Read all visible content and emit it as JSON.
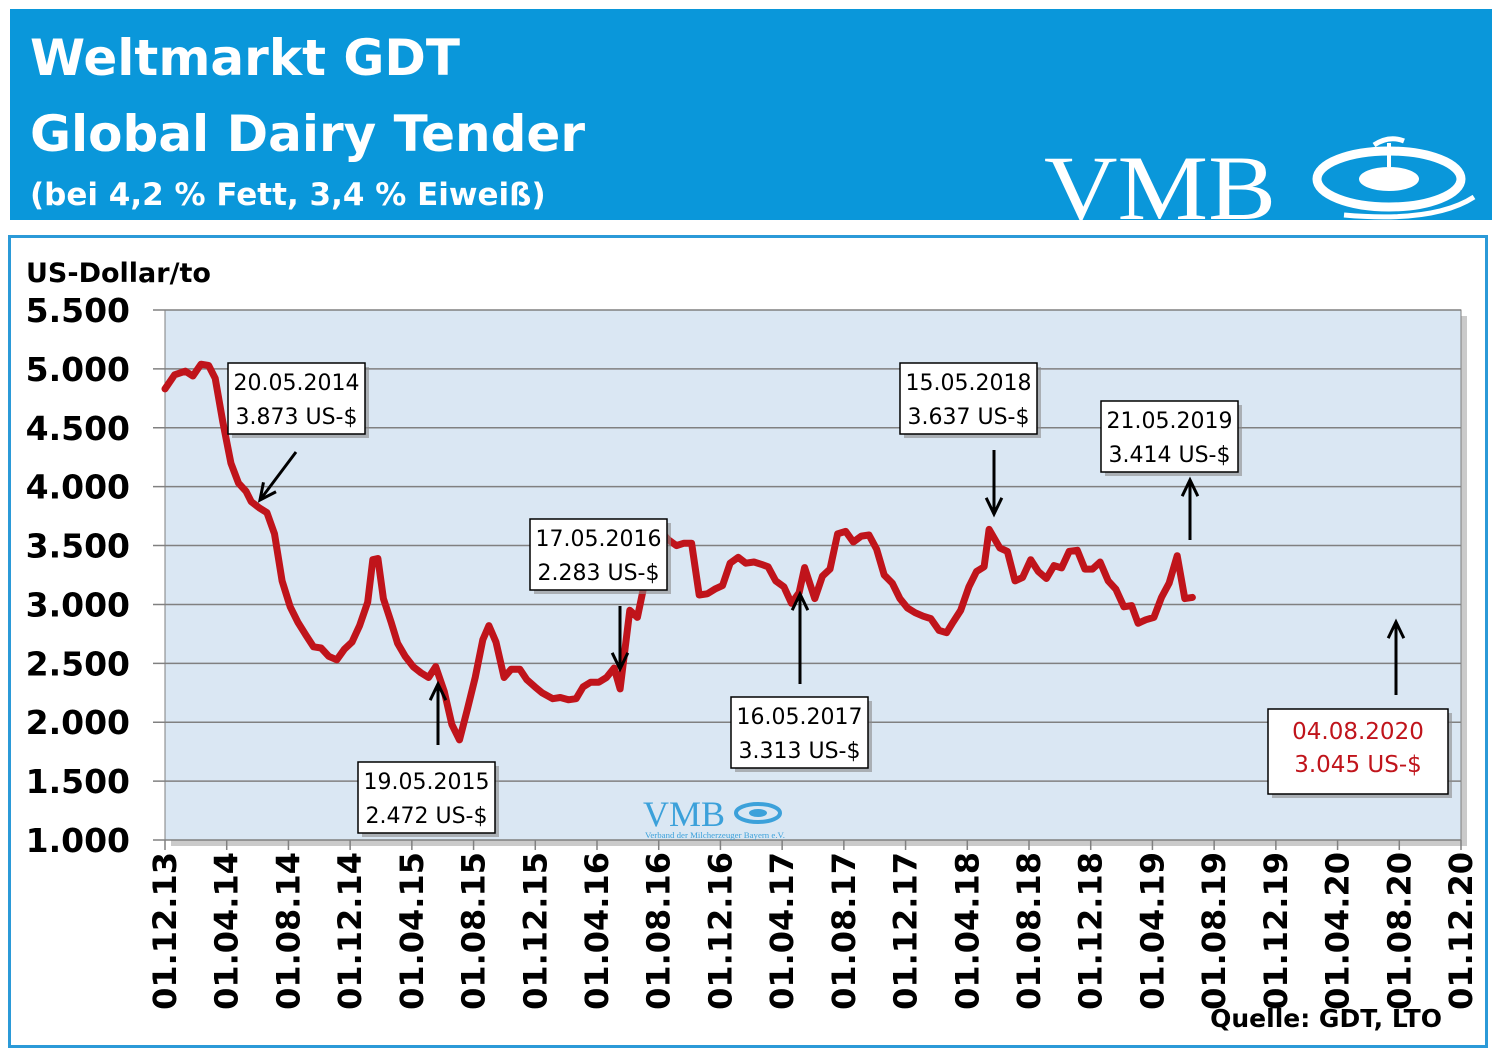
{
  "header": {
    "line1": "Weltmarkt GDT",
    "line2": "Global Dairy Tender",
    "line3": "(bei 4,2 % Fett, 3,4 % Eiweiß)",
    "logo_text": "VMB",
    "bg_color": "#0a97da"
  },
  "watermark": {
    "text": "VMB",
    "subtext": "Verband der Milcherzeuger Bayern e.V."
  },
  "source": "Quelle: GDT, LTO",
  "chart_data": {
    "type": "line",
    "ylabel": "US-Dollar/to",
    "ylim": [
      1000,
      5500
    ],
    "yticks": [
      "5.500",
      "5.000",
      "4.500",
      "4.000",
      "3.500",
      "3.000",
      "2.500",
      "2.000",
      "1.500",
      "1.000"
    ],
    "x_tick_labels": [
      "01.12.13",
      "01.04.14",
      "01.08.14",
      "01.12.14",
      "01.04.15",
      "01.08.15",
      "01.12.15",
      "01.04.16",
      "01.08.16",
      "01.12.16",
      "01.04.17",
      "01.08.17",
      "01.12.17",
      "01.04.18",
      "01.08.18",
      "01.12.18",
      "01.04.19",
      "01.08.19",
      "01.12.19",
      "01.04.20",
      "01.08.20",
      "01.12.20"
    ],
    "grid": true,
    "line_color": "#c0141b",
    "plot_bg": "#dae7f3",
    "series": [
      {
        "values": [
          [
            "2013-12-01",
            4830
          ],
          [
            "2013-12-20",
            4950
          ],
          [
            "2014-01-10",
            4980
          ],
          [
            "2014-01-25",
            4940
          ],
          [
            "2014-02-10",
            5040
          ],
          [
            "2014-02-25",
            5030
          ],
          [
            "2014-03-10",
            4920
          ],
          [
            "2014-03-25",
            4550
          ],
          [
            "2014-04-10",
            4200
          ],
          [
            "2014-04-25",
            4030
          ],
          [
            "2014-05-10",
            3960
          ],
          [
            "2014-05-20",
            3873
          ],
          [
            "2014-06-05",
            3820
          ],
          [
            "2014-06-20",
            3780
          ],
          [
            "2014-07-05",
            3600
          ],
          [
            "2014-07-20",
            3200
          ],
          [
            "2014-08-05",
            2980
          ],
          [
            "2014-08-20",
            2850
          ],
          [
            "2014-09-05",
            2740
          ],
          [
            "2014-09-20",
            2640
          ],
          [
            "2014-10-05",
            2630
          ],
          [
            "2014-10-20",
            2560
          ],
          [
            "2014-11-05",
            2530
          ],
          [
            "2014-11-20",
            2620
          ],
          [
            "2014-12-05",
            2680
          ],
          [
            "2014-12-20",
            2820
          ],
          [
            "2015-01-05",
            3020
          ],
          [
            "2015-01-15",
            3380
          ],
          [
            "2015-01-25",
            3390
          ],
          [
            "2015-02-05",
            3050
          ],
          [
            "2015-02-20",
            2850
          ],
          [
            "2015-03-05",
            2670
          ],
          [
            "2015-03-20",
            2560
          ],
          [
            "2015-04-05",
            2470
          ],
          [
            "2015-04-20",
            2420
          ],
          [
            "2015-05-05",
            2380
          ],
          [
            "2015-05-19",
            2472
          ],
          [
            "2015-06-05",
            2260
          ],
          [
            "2015-06-20",
            1980
          ],
          [
            "2015-07-05",
            1850
          ],
          [
            "2015-07-20",
            2100
          ],
          [
            "2015-08-05",
            2380
          ],
          [
            "2015-08-20",
            2700
          ],
          [
            "2015-09-01",
            2820
          ],
          [
            "2015-09-15",
            2680
          ],
          [
            "2015-10-01",
            2380
          ],
          [
            "2015-10-15",
            2450
          ],
          [
            "2015-11-01",
            2450
          ],
          [
            "2015-11-15",
            2360
          ],
          [
            "2015-12-01",
            2300
          ],
          [
            "2015-12-15",
            2250
          ],
          [
            "2016-01-05",
            2200
          ],
          [
            "2016-01-20",
            2210
          ],
          [
            "2016-02-05",
            2190
          ],
          [
            "2016-02-20",
            2200
          ],
          [
            "2016-03-05",
            2300
          ],
          [
            "2016-03-20",
            2340
          ],
          [
            "2016-04-05",
            2340
          ],
          [
            "2016-04-20",
            2380
          ],
          [
            "2016-05-05",
            2460
          ],
          [
            "2016-05-17",
            2283
          ],
          [
            "2016-06-05",
            2950
          ],
          [
            "2016-06-20",
            2890
          ],
          [
            "2016-07-05",
            3200
          ],
          [
            "2016-07-20",
            3500
          ],
          [
            "2016-08-05",
            3620
          ],
          [
            "2016-08-20",
            3550
          ],
          [
            "2016-09-05",
            3500
          ],
          [
            "2016-09-20",
            3520
          ],
          [
            "2016-10-05",
            3520
          ],
          [
            "2016-10-20",
            3080
          ],
          [
            "2016-11-05",
            3090
          ],
          [
            "2016-11-20",
            3130
          ],
          [
            "2016-12-05",
            3160
          ],
          [
            "2016-12-20",
            3350
          ],
          [
            "2017-01-05",
            3400
          ],
          [
            "2017-01-20",
            3350
          ],
          [
            "2017-02-05",
            3360
          ],
          [
            "2017-02-20",
            3340
          ],
          [
            "2017-03-05",
            3320
          ],
          [
            "2017-03-20",
            3200
          ],
          [
            "2017-04-05",
            3150
          ],
          [
            "2017-04-20",
            3010
          ],
          [
            "2017-05-05",
            3100
          ],
          [
            "2017-05-16",
            3313
          ],
          [
            "2017-06-05",
            3050
          ],
          [
            "2017-06-20",
            3240
          ],
          [
            "2017-07-05",
            3300
          ],
          [
            "2017-07-20",
            3600
          ],
          [
            "2017-08-05",
            3620
          ],
          [
            "2017-08-20",
            3530
          ],
          [
            "2017-09-05",
            3580
          ],
          [
            "2017-09-20",
            3590
          ],
          [
            "2017-10-05",
            3470
          ],
          [
            "2017-10-20",
            3250
          ],
          [
            "2017-11-05",
            3180
          ],
          [
            "2017-11-20",
            3050
          ],
          [
            "2017-12-05",
            2970
          ],
          [
            "2017-12-20",
            2930
          ],
          [
            "2018-01-05",
            2900
          ],
          [
            "2018-01-20",
            2880
          ],
          [
            "2018-02-05",
            2780
          ],
          [
            "2018-02-20",
            2760
          ],
          [
            "2018-03-05",
            2850
          ],
          [
            "2018-03-20",
            2950
          ],
          [
            "2018-04-05",
            3150
          ],
          [
            "2018-04-20",
            3280
          ],
          [
            "2018-05-05",
            3320
          ],
          [
            "2018-05-15",
            3637
          ],
          [
            "2018-06-05",
            3480
          ],
          [
            "2018-06-20",
            3450
          ],
          [
            "2018-07-05",
            3200
          ],
          [
            "2018-07-20",
            3230
          ],
          [
            "2018-08-05",
            3380
          ],
          [
            "2018-08-20",
            3280
          ],
          [
            "2018-09-05",
            3220
          ],
          [
            "2018-09-20",
            3330
          ],
          [
            "2018-10-05",
            3310
          ],
          [
            "2018-10-20",
            3450
          ],
          [
            "2018-11-05",
            3460
          ],
          [
            "2018-11-20",
            3300
          ],
          [
            "2018-12-05",
            3300
          ],
          [
            "2018-12-20",
            3360
          ],
          [
            "2019-01-05",
            3200
          ],
          [
            "2019-01-20",
            3130
          ],
          [
            "2019-02-05",
            2980
          ],
          [
            "2019-02-20",
            2990
          ],
          [
            "2019-03-05",
            2840
          ],
          [
            "2019-03-20",
            2870
          ],
          [
            "2019-04-05",
            2890
          ],
          [
            "2019-04-20",
            3060
          ],
          [
            "2019-05-05",
            3180
          ],
          [
            "2019-05-21",
            3414
          ],
          [
            "2019-06-05",
            3050
          ],
          [
            "2019-06-20",
            3060
          ]
        ]
      }
    ],
    "annotations": [
      {
        "date": "20.05.2014",
        "value": "3.873 US-$"
      },
      {
        "date": "19.05.2015",
        "value": "2.472 US-$"
      },
      {
        "date": "17.05.2016",
        "value": "2.283 US-$"
      },
      {
        "date": "16.05.2017",
        "value": "3.313 US-$"
      },
      {
        "date": "15.05.2018",
        "value": "3.637 US-$"
      },
      {
        "date": "21.05.2019",
        "value": "3.414 US-$"
      },
      {
        "date": "04.08.2020",
        "value": "3.045 US-$",
        "color": "#c0141b"
      }
    ]
  }
}
